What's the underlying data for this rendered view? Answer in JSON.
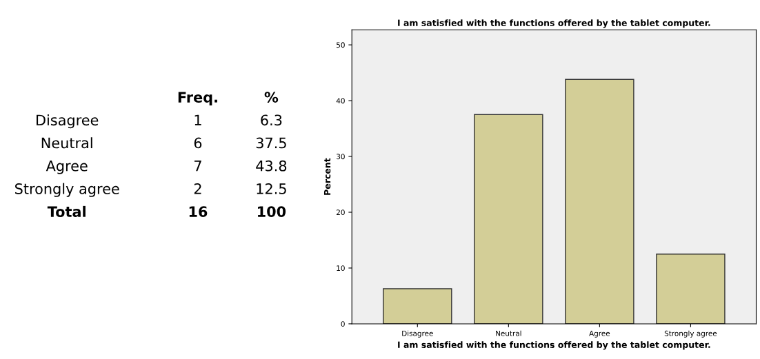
{
  "chart_data": [
    {
      "type": "other",
      "categories": [
        "Disagree",
        "Neutral",
        "Agree",
        "Strongly agree",
        "Total"
      ],
      "series": [
        {
          "name": "Freq.",
          "values": [
            1,
            6,
            7,
            2,
            16
          ]
        },
        {
          "name": "%",
          "values": [
            6.3,
            37.5,
            43.8,
            12.5,
            100
          ]
        }
      ],
      "data_labels": true
    },
    {
      "type": "bar",
      "title": "I am satisfied with the functions offered by the tablet computer.",
      "xlabel": "I am satisfied with the functions offered by the tablet computer.",
      "ylabel": "Percent",
      "categories": [
        "Disagree",
        "Neutral",
        "Agree",
        "Strongly agree"
      ],
      "values": [
        6.3,
        37.5,
        43.8,
        12.5
      ],
      "color": "#d3ce97",
      "ylim": [
        0,
        52.7
      ],
      "yticks": [
        0,
        10,
        20,
        30,
        40,
        50
      ],
      "grid": false
    }
  ]
}
